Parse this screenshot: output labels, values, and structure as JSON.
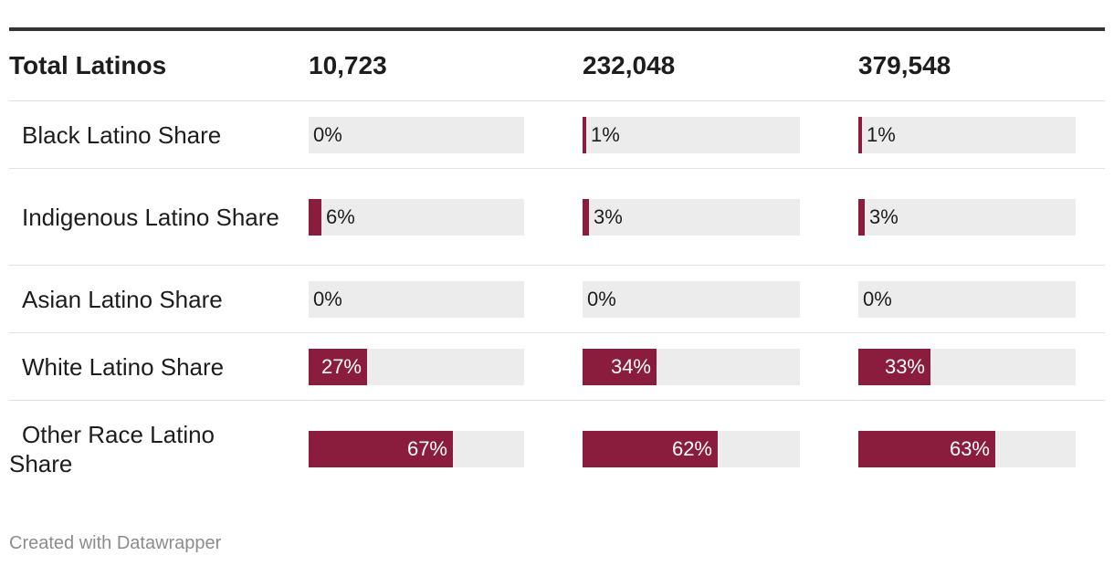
{
  "colors": {
    "bar": "#8a1c3e",
    "track": "#ececec"
  },
  "chart_data": {
    "type": "table",
    "header": {
      "label": "Total Latinos",
      "totals": [
        "10,723",
        "232,048",
        "379,548"
      ]
    },
    "rows": [
      {
        "label": "Black Latino Share",
        "values": [
          0,
          1,
          1
        ],
        "labels": [
          "0%",
          "1%",
          "1%"
        ]
      },
      {
        "label": "Indigenous Latino Share",
        "values": [
          6,
          3,
          3
        ],
        "labels": [
          "6%",
          "3%",
          "3%"
        ]
      },
      {
        "label": "Asian Latino Share",
        "values": [
          0,
          0,
          0
        ],
        "labels": [
          "0%",
          "0%",
          "0%"
        ]
      },
      {
        "label": "White Latino Share",
        "values": [
          27,
          34,
          33
        ],
        "labels": [
          "27%",
          "34%",
          "33%"
        ]
      },
      {
        "label": "Other Race Latino Share",
        "values": [
          67,
          62,
          63
        ],
        "labels": [
          "67%",
          "62%",
          "63%"
        ]
      }
    ],
    "bar_max": 100
  },
  "footer": "Created with Datawrapper"
}
